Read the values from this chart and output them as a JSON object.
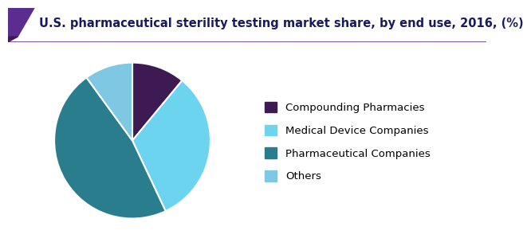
{
  "title": "U.S. pharmaceutical sterility testing market share, by end use, 2016, (%)",
  "labels": [
    "Compounding Pharmacies",
    "Medical Device Companies",
    "Pharmaceutical Companies",
    "Others"
  ],
  "values": [
    11,
    32,
    47,
    10
  ],
  "colors": [
    "#3d1a52",
    "#6dd4f0",
    "#2a7d8c",
    "#7ec8e3"
  ],
  "startangle": 90,
  "background_color": "#ffffff",
  "title_color": "#1a1a5e",
  "title_fontsize": 10.5,
  "legend_fontsize": 9.5,
  "wedge_edge_color": "#ffffff",
  "wedge_linewidth": 1.5,
  "header_color": "#ffffff",
  "header_line_color": "#6b3fa0",
  "corner_color1": "#5b2d8e",
  "corner_color2": "#3d1a52"
}
